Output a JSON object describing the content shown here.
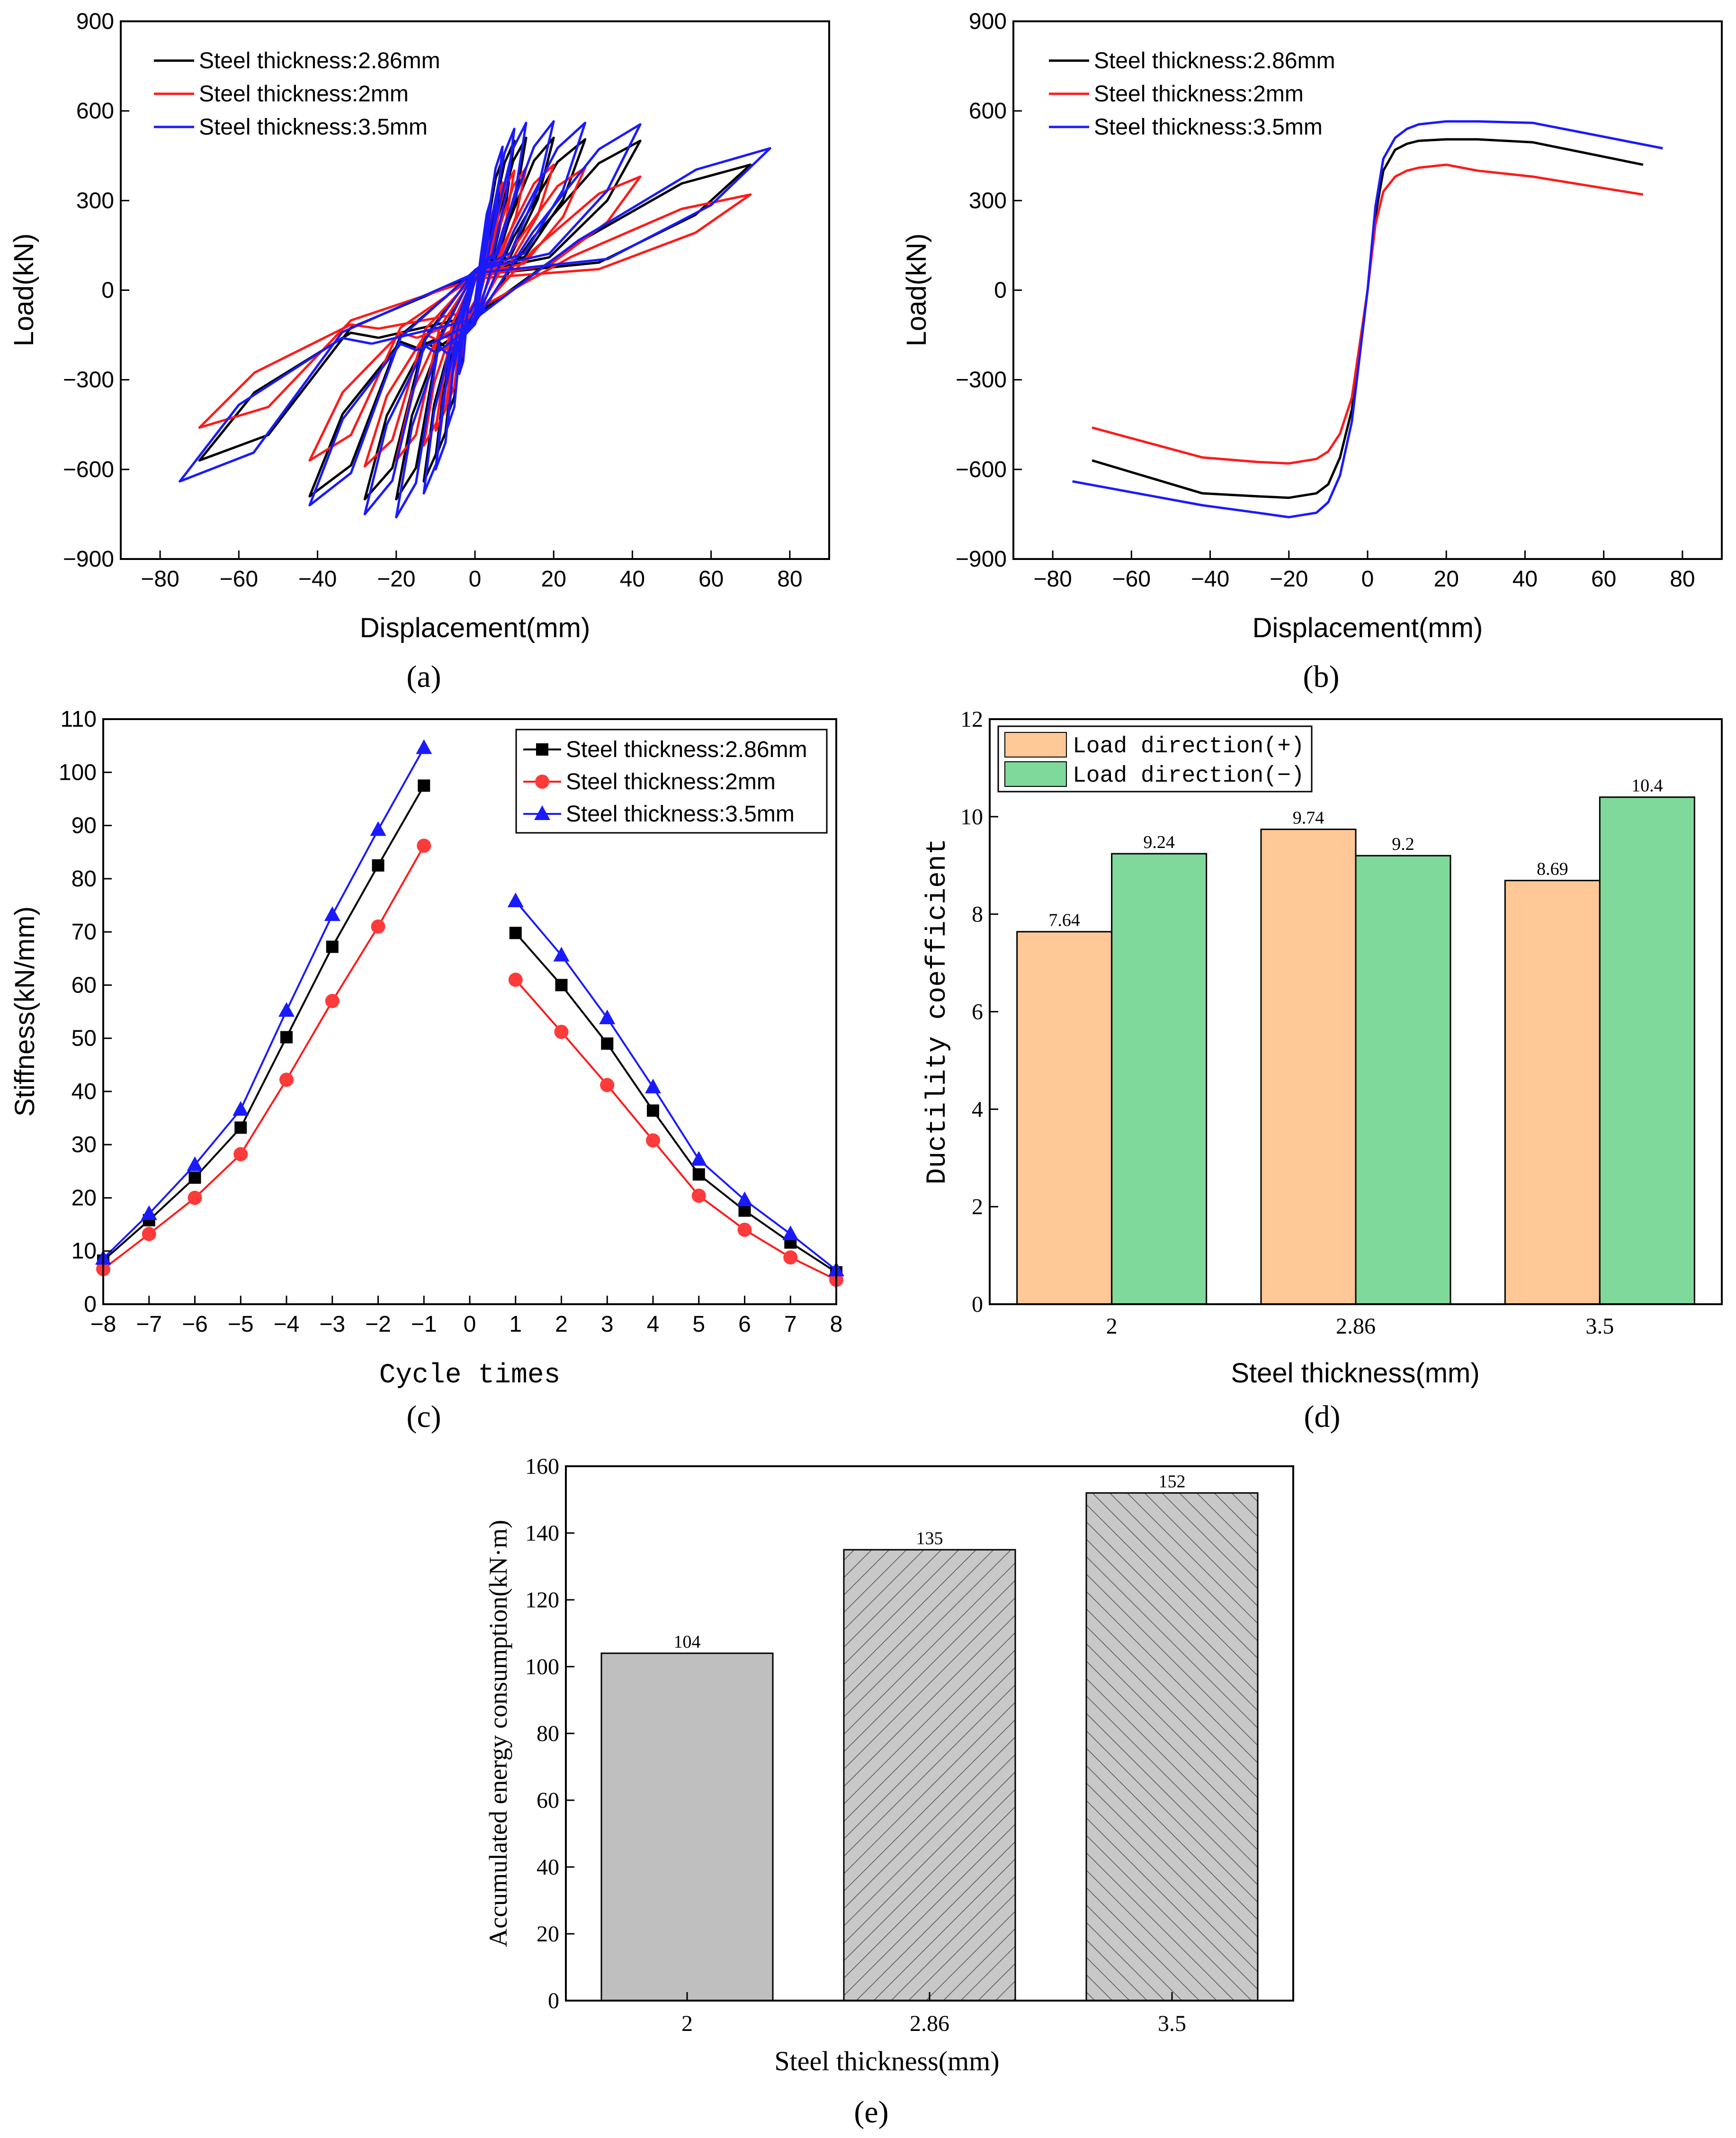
{
  "colors": {
    "t286": "#000000",
    "t2": "#ff1a1a",
    "t35": "#1a1aff",
    "orange": "#ffc896",
    "green": "#7fd99a",
    "gray": "#bfbfbf"
  },
  "panel_captions": [
    "(a)",
    "(b)",
    "(c)",
    "(d)",
    "(e)"
  ],
  "chart_data": [
    {
      "id": "a",
      "type": "line",
      "title": "",
      "xlabel": "Displacement(mm)",
      "ylabel": "Load(kN)",
      "xlim": [
        -90,
        90
      ],
      "ylim": [
        -900,
        900
      ],
      "xticks": [
        "-80",
        "-60",
        "-40",
        "-20",
        "0",
        "20",
        "40",
        "60",
        "80"
      ],
      "yticks": [
        "-900",
        "-600",
        "-300",
        "0",
        "300",
        "600",
        "900"
      ],
      "legend": [
        "Steel thickness:2.86mm",
        "Steel thickness:2mm",
        "Steel thickness:3.5mm"
      ],
      "series": [
        {
          "name": "Steel thickness:2.86mm",
          "amps": [
            [
              4,
              280,
              -260
            ],
            [
              7,
              440,
              -420
            ],
            [
              10,
              500,
              -560
            ],
            [
              13,
              510,
              -640
            ],
            [
              20,
              510,
              -700
            ],
            [
              28,
              505,
              -700
            ],
            [
              42,
              500,
              -690
            ],
            [
              70,
              420,
              -570
            ]
          ]
        },
        {
          "name": "Steel thickness:2mm",
          "amps": [
            [
              4,
              250,
              -240
            ],
            [
              7,
              360,
              -380
            ],
            [
              10,
              400,
              -470
            ],
            [
              13,
              410,
              -520
            ],
            [
              20,
              420,
              -570
            ],
            [
              28,
              410,
              -590
            ],
            [
              42,
              380,
              -570
            ],
            [
              70,
              320,
              -460
            ]
          ]
        },
        {
          "name": "Steel thickness:3.5mm",
          "amps": [
            [
              4,
              300,
              -280
            ],
            [
              7,
              480,
              -460
            ],
            [
              10,
              540,
              -600
            ],
            [
              13,
              560,
              -680
            ],
            [
              20,
              565,
              -760
            ],
            [
              28,
              560,
              -750
            ],
            [
              42,
              555,
              -720
            ],
            [
              75,
              475,
              -640
            ]
          ]
        }
      ]
    },
    {
      "id": "b",
      "type": "line",
      "title": "",
      "xlabel": "Displacement(mm)",
      "ylabel": "Load(kN)",
      "xlim": [
        -90,
        90
      ],
      "ylim": [
        -900,
        900
      ],
      "xticks": [
        "-80",
        "-60",
        "-40",
        "-20",
        "0",
        "20",
        "40",
        "60",
        "80"
      ],
      "yticks": [
        "-900",
        "-600",
        "-300",
        "0",
        "300",
        "600",
        "900"
      ],
      "legend": [
        "Steel thickness:2.86mm",
        "Steel thickness:2mm",
        "Steel thickness:3.5mm"
      ],
      "series": [
        {
          "name": "Steel thickness:2.86mm",
          "x": [
            -70,
            -42,
            -28,
            -20,
            -13,
            -10,
            -7,
            -4,
            -2,
            0,
            2,
            4,
            7,
            10,
            13,
            20,
            28,
            42,
            70
          ],
          "y": [
            -570,
            -680,
            -690,
            -695,
            -680,
            -650,
            -560,
            -400,
            -200,
            0,
            250,
            400,
            470,
            490,
            500,
            505,
            505,
            495,
            420
          ]
        },
        {
          "name": "Steel thickness:2mm",
          "x": [
            -70,
            -42,
            -28,
            -20,
            -13,
            -10,
            -7,
            -4,
            -2,
            0,
            2,
            4,
            7,
            10,
            13,
            20,
            28,
            42,
            70
          ],
          "y": [
            -460,
            -560,
            -575,
            -580,
            -565,
            -540,
            -480,
            -360,
            -180,
            0,
            220,
            330,
            380,
            400,
            410,
            420,
            400,
            380,
            320
          ]
        },
        {
          "name": "Steel thickness:3.5mm",
          "x": [
            -75,
            -42,
            -28,
            -20,
            -13,
            -10,
            -7,
            -4,
            -2,
            0,
            2,
            4,
            7,
            10,
            13,
            20,
            28,
            42,
            75
          ],
          "y": [
            -640,
            -720,
            -745,
            -760,
            -745,
            -710,
            -620,
            -440,
            -220,
            0,
            280,
            440,
            510,
            540,
            555,
            565,
            565,
            560,
            475
          ]
        }
      ]
    },
    {
      "id": "c",
      "type": "line",
      "title": "",
      "xlabel": "Cycle times",
      "ylabel": "Stiffness(kN/mm)",
      "xlim": [
        -8,
        8
      ],
      "ylim": [
        0,
        110
      ],
      "xticks": [
        "-8",
        "-7",
        "-6",
        "-5",
        "-4",
        "-3",
        "-2",
        "-1",
        "0",
        "1",
        "2",
        "3",
        "4",
        "5",
        "6",
        "7",
        "8"
      ],
      "yticks": [
        "0",
        "10",
        "20",
        "30",
        "40",
        "50",
        "60",
        "70",
        "80",
        "90",
        "100",
        "110"
      ],
      "legend": [
        "Steel thickness:2.86mm",
        "Steel thickness:2mm",
        "Steel thickness:3.5mm"
      ],
      "x_neg": [
        -8,
        -7,
        -6,
        -5,
        -4,
        -3,
        -2,
        -1
      ],
      "x_pos": [
        1,
        2,
        3,
        4,
        5,
        6,
        7,
        8
      ],
      "series": [
        {
          "name": "Steel thickness:2.86mm",
          "marker": "square",
          "neg": [
            8.2,
            15.8,
            23.8,
            33.2,
            50.2,
            67.2,
            82.5,
            97.5
          ],
          "pos": [
            69.8,
            60.0,
            49.0,
            36.4,
            24.4,
            17.6,
            11.6,
            6.0
          ]
        },
        {
          "name": "Steel thickness:2mm",
          "marker": "circle",
          "neg": [
            6.6,
            13.2,
            20.0,
            28.2,
            42.2,
            57.0,
            71.0,
            86.2
          ],
          "pos": [
            61.0,
            51.2,
            41.2,
            30.8,
            20.4,
            14.0,
            8.8,
            4.6
          ]
        },
        {
          "name": "Steel thickness:3.5mm",
          "marker": "triangle",
          "neg": [
            8.6,
            17.0,
            26.2,
            36.6,
            55.2,
            73.2,
            89.2,
            104.6
          ],
          "pos": [
            75.8,
            65.6,
            53.8,
            40.8,
            27.2,
            19.6,
            13.2,
            6.4
          ]
        }
      ]
    },
    {
      "id": "d",
      "type": "bar",
      "title": "",
      "xlabel": "Steel thickness(mm)",
      "ylabel": "Ductility coefficient",
      "ylim": [
        0,
        12
      ],
      "yticks": [
        "0",
        "2",
        "4",
        "6",
        "8",
        "10",
        "12"
      ],
      "categories": [
        "2",
        "2.86",
        "3.5"
      ],
      "series": [
        {
          "name": "Load direction(+)",
          "values": [
            7.64,
            9.74,
            8.69
          ],
          "labels": [
            "7.64",
            "9.74",
            "8.69"
          ]
        },
        {
          "name": "Load direction(−)",
          "values": [
            9.24,
            9.2,
            10.4
          ],
          "labels": [
            "9.24",
            "9.2",
            "10.4"
          ]
        }
      ]
    },
    {
      "id": "e",
      "type": "bar",
      "title": "",
      "xlabel": "Steel thickness(mm)",
      "ylabel": "Accumulated energy consumption(kN·m)",
      "ylim": [
        0,
        160
      ],
      "yticks": [
        "0",
        "20",
        "40",
        "60",
        "80",
        "100",
        "120",
        "140",
        "160"
      ],
      "categories": [
        "2",
        "2.86",
        "3.5"
      ],
      "values": [
        104,
        135,
        152
      ],
      "labels": [
        "104",
        "135",
        "152"
      ]
    }
  ]
}
